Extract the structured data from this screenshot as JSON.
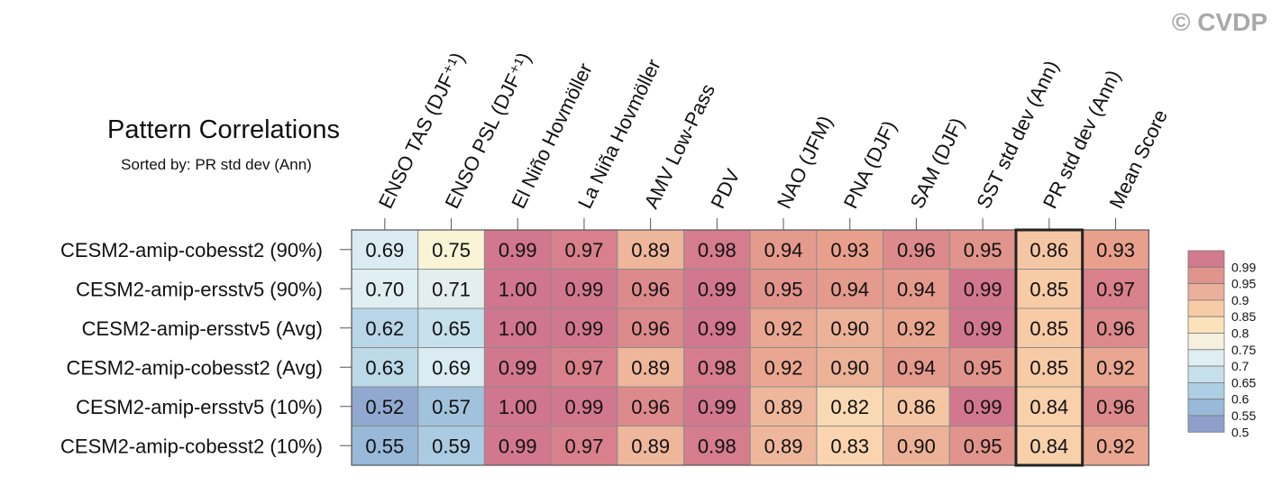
{
  "copyright": "© CVDP",
  "chart_data": {
    "type": "heatmap",
    "title": "Pattern Correlations",
    "subtitle": "Sorted by: PR std dev (Ann)",
    "columns": [
      "ENSO TAS (DJF⁺¹)",
      "ENSO PSL (DJF⁺¹)",
      "El Niño Hovmöller",
      "La Niña Hovmöller",
      "AMV Low-Pass",
      "PDV",
      "NAO (JFM)",
      "PNA (DJF)",
      "SAM (DJF)",
      "SST std dev (Ann)",
      "PR std dev (Ann)",
      "Mean Score"
    ],
    "rows": [
      "CESM2-amip-cobesst2 (90%)",
      "CESM2-amip-ersstv5 (90%)",
      "CESM2-amip-ersstv5 (Avg)",
      "CESM2-amip-cobesst2 (Avg)",
      "CESM2-amip-ersstv5 (10%)",
      "CESM2-amip-cobesst2 (10%)"
    ],
    "values": [
      [
        "0.69",
        "0.75",
        "0.99",
        "0.97",
        "0.89",
        "0.98",
        "0.94",
        "0.93",
        "0.96",
        "0.95",
        "0.86",
        "0.93"
      ],
      [
        "0.70",
        "0.71",
        "1.00",
        "0.99",
        "0.96",
        "0.99",
        "0.95",
        "0.94",
        "0.94",
        "0.99",
        "0.85",
        "0.97"
      ],
      [
        "0.62",
        "0.65",
        "1.00",
        "0.99",
        "0.96",
        "0.99",
        "0.92",
        "0.90",
        "0.92",
        "0.99",
        "0.85",
        "0.96"
      ],
      [
        "0.63",
        "0.69",
        "0.99",
        "0.97",
        "0.89",
        "0.98",
        "0.92",
        "0.90",
        "0.94",
        "0.95",
        "0.85",
        "0.92"
      ],
      [
        "0.52",
        "0.57",
        "1.00",
        "0.99",
        "0.96",
        "0.99",
        "0.89",
        "0.82",
        "0.86",
        "0.99",
        "0.84",
        "0.96"
      ],
      [
        "0.55",
        "0.59",
        "0.99",
        "0.97",
        "0.89",
        "0.98",
        "0.89",
        "0.83",
        "0.90",
        "0.95",
        "0.84",
        "0.92"
      ]
    ],
    "highlighted_column": "PR std dev (Ann)",
    "colorbar": {
      "labels": [
        "0.99",
        "0.95",
        "0.9",
        "0.85",
        "0.8",
        "0.75",
        "0.7",
        "0.65",
        "0.6",
        "0.55",
        "0.5"
      ],
      "colors": [
        "#d27a8e",
        "#e0948c",
        "#eab09c",
        "#f7cba6",
        "#fbe2bb",
        "#f6f1de",
        "#dfeef3",
        "#c6e0ec",
        "#aecfe3",
        "#98b9d8",
        "#8d9fcb"
      ]
    }
  }
}
